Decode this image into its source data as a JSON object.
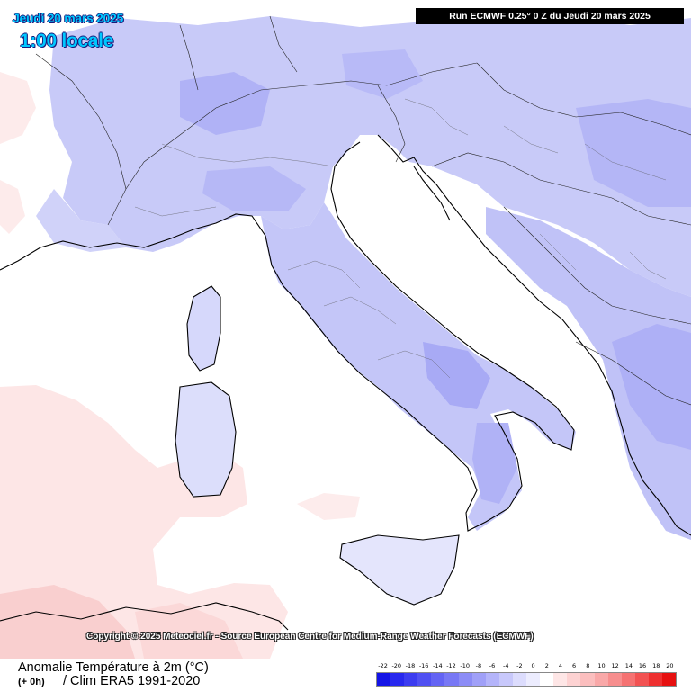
{
  "header": {
    "date": "Jeudi 20 mars 2025",
    "time": "1:00 locale",
    "run": "Run ECMWF 0.25° 0 Z du Jeudi 20 mars 2025"
  },
  "map": {
    "region": "Italy and central Mediterranean",
    "copyright": "Copyright © 2025 Meteociel.fr - Source European Centre for Medium-Range Weather Forecasts (ECMWF)"
  },
  "footer": {
    "parameter": "Anomalie Température à 2m (°C)",
    "offset": "(+ 0h)",
    "climatology": "/ Clim ERA5 1991-2020"
  },
  "legend": {
    "ticks": [
      "-22",
      "-20",
      "-18",
      "-16",
      "-14",
      "-12",
      "-10",
      "-8",
      "-6",
      "-4",
      "-2",
      "0",
      "2",
      "4",
      "6",
      "8",
      "10",
      "12",
      "14",
      "16",
      "18",
      "20"
    ],
    "colors": [
      "#1414e6",
      "#2828ee",
      "#3c3cf0",
      "#5050f2",
      "#6464f4",
      "#7878f5",
      "#8c8cf6",
      "#a0a0f8",
      "#b4b4fa",
      "#c8c8fb",
      "#dcdcfd",
      "#ececfe",
      "#ffffff",
      "#fee6e6",
      "#fdd2d2",
      "#fbbebe",
      "#f9a8a8",
      "#f78e8e",
      "#f57272",
      "#f25252",
      "#ee3030",
      "#e61010"
    ]
  },
  "colors": {
    "anomaly_cold_strong": "#a8aaf6",
    "anomaly_cold_mid": "#c4c6f8",
    "anomaly_cold_light": "#dcdefb",
    "anomaly_warm_light": "#fde4e4",
    "anomaly_warm_mid": "#f8c4c4",
    "title_cyan": "#00c8ff",
    "banner_bg": "#000000"
  }
}
